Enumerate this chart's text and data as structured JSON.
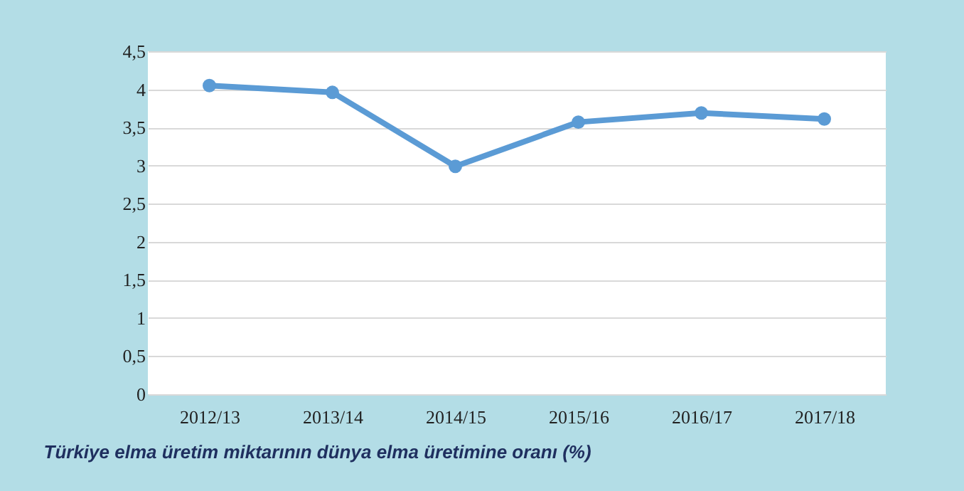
{
  "chart_data": {
    "type": "line",
    "categories": [
      "2012/13",
      "2013/14",
      "2014/15",
      "2015/16",
      "2016/17",
      "2017/18"
    ],
    "series": [
      {
        "color": "#5b9bd5",
        "values": [
          4.05,
          3.96,
          2.99,
          3.57,
          3.69,
          3.61
        ]
      }
    ],
    "ylim": [
      0,
      4.5
    ],
    "yticks": [
      0,
      {
        "value": 0.5,
        "label": "0,5"
      },
      1,
      {
        "value": 1.5,
        "label": "1,5"
      },
      2,
      {
        "value": 2.5,
        "label": "2,5"
      },
      3,
      {
        "value": 3.5,
        "label": "3,5"
      },
      4,
      {
        "value": 4.5,
        "label": "4,5"
      }
    ],
    "grid": "y",
    "marker": "circle",
    "line_style": "solid",
    "legend": false,
    "annotations": [
      "Türkiye elma üretim miktarının dünya elma üretimine oranı (%)"
    ]
  }
}
